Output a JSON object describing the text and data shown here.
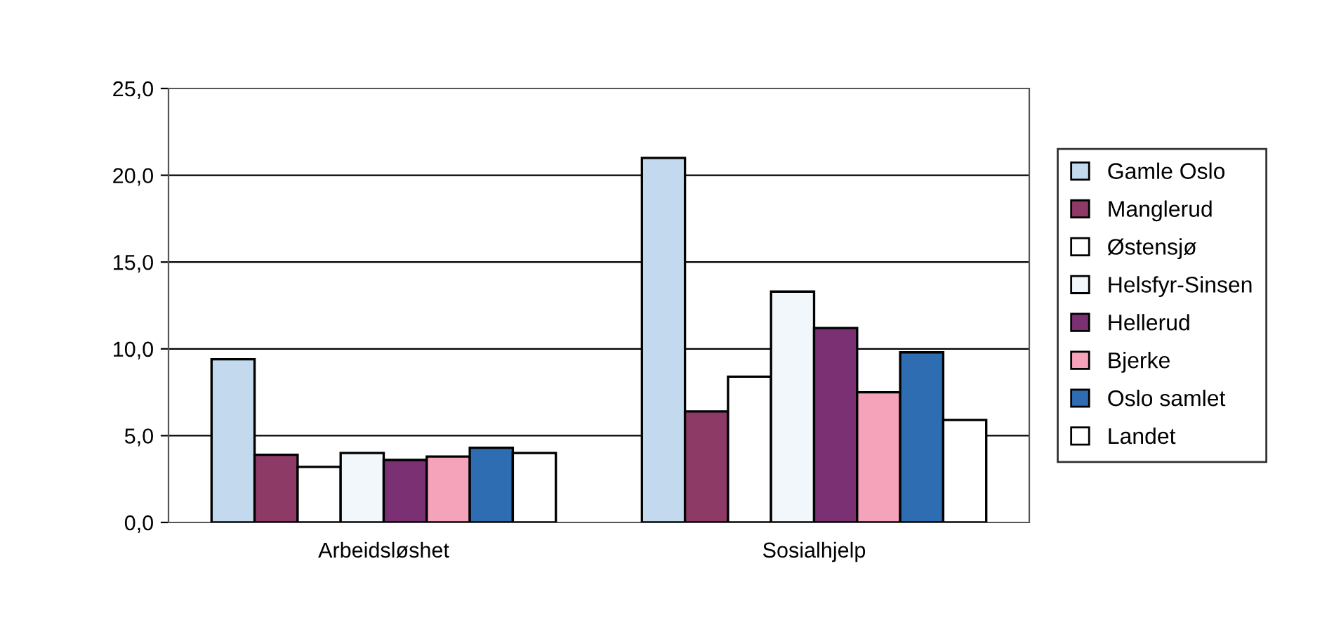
{
  "chart_data": {
    "type": "bar",
    "categories": [
      "Arbeidsløshet",
      "Sosialhjelp"
    ],
    "series": [
      {
        "name": "Gamle Oslo",
        "color": "#c3daee",
        "values": [
          9.4,
          21.0
        ]
      },
      {
        "name": "Manglerud",
        "color": "#8e3a66",
        "values": [
          3.9,
          6.4
        ]
      },
      {
        "name": "Østensjø",
        "color": "#ffffff",
        "values": [
          3.2,
          8.4
        ]
      },
      {
        "name": "Helsfyr-Sinsen",
        "color": "#f2f7fb",
        "values": [
          4.0,
          13.3
        ]
      },
      {
        "name": "Hellerud",
        "color": "#7a3072",
        "values": [
          3.6,
          11.2
        ]
      },
      {
        "name": "Bjerke",
        "color": "#f5a3bb",
        "values": [
          3.8,
          7.5
        ]
      },
      {
        "name": "Oslo samlet",
        "color": "#2f6db3",
        "values": [
          4.3,
          9.8
        ]
      },
      {
        "name": "Landet",
        "color": "#ffffff",
        "values": [
          4.0,
          5.9
        ]
      }
    ],
    "ylim": [
      0,
      25
    ],
    "yticks": [
      {
        "value": 0,
        "label": "0,0"
      },
      {
        "value": 5,
        "label": "5,0"
      },
      {
        "value": 10,
        "label": "10,0"
      },
      {
        "value": 15,
        "label": "15,0"
      },
      {
        "value": 20,
        "label": "20,0"
      },
      {
        "value": 25,
        "label": "25,0"
      }
    ],
    "grid": "y",
    "legend": "right"
  }
}
